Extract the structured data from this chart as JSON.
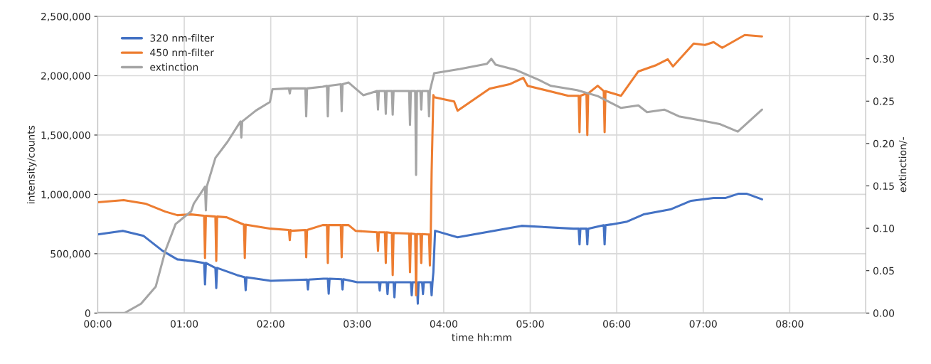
{
  "chart_data": {
    "type": "line",
    "xlabel": "time hh:mm",
    "ylabel": "intensity/counts",
    "y2label": "extinction/-",
    "xlim": [
      0,
      8.88
    ],
    "xticks": [
      {
        "value": 0,
        "label": "00:00"
      },
      {
        "value": 1,
        "label": "01:00"
      },
      {
        "value": 2,
        "label": "02:00"
      },
      {
        "value": 3,
        "label": "03:00"
      },
      {
        "value": 4,
        "label": "04:00"
      },
      {
        "value": 5,
        "label": "05:00"
      },
      {
        "value": 6,
        "label": "06:00"
      },
      {
        "value": 7,
        "label": "07:00"
      },
      {
        "value": 8,
        "label": "08:00"
      }
    ],
    "ylim": [
      0,
      2500000
    ],
    "yticks": [
      {
        "value": 0,
        "label": "0"
      },
      {
        "value": 500000,
        "label": "500,000"
      },
      {
        "value": 1000000,
        "label": "1,000,000"
      },
      {
        "value": 1500000,
        "label": "1,500,000"
      },
      {
        "value": 2000000,
        "label": "2,000,000"
      },
      {
        "value": 2500000,
        "label": "2,500,000"
      }
    ],
    "y2lim": [
      0,
      0.35
    ],
    "y2ticks": [
      {
        "value": 0,
        "label": "0.00"
      },
      {
        "value": 0.05,
        "label": "0.05"
      },
      {
        "value": 0.1,
        "label": "0.10"
      },
      {
        "value": 0.15,
        "label": "0.15"
      },
      {
        "value": 0.2,
        "label": "0.20"
      },
      {
        "value": 0.25,
        "label": "0.25"
      },
      {
        "value": 0.3,
        "label": "0.30"
      },
      {
        "value": 0.35,
        "label": "0.35"
      }
    ],
    "grid": true,
    "legend": "top left",
    "line_style": "solid",
    "marker": "none",
    "series": [
      {
        "name": "320 nm-filter",
        "color": "#4472c4",
        "x": [
          0,
          0.29,
          0.53,
          0.75,
          0.92,
          1.08,
          1.23,
          1.24,
          1.25,
          1.36,
          1.37,
          1.38,
          1.61,
          1.7,
          1.71,
          1.72,
          2.0,
          2.42,
          2.43,
          2.44,
          2.61,
          2.66,
          2.67,
          2.68,
          2.82,
          2.83,
          2.84,
          3.0,
          3.25,
          3.26,
          3.27,
          3.34,
          3.35,
          3.36,
          3.42,
          3.43,
          3.44,
          3.62,
          3.63,
          3.64,
          3.69,
          3.7,
          3.71,
          3.75,
          3.76,
          3.77,
          3.82,
          3.85,
          3.86,
          3.87,
          3.88,
          3.9,
          4.16,
          4.53,
          4.9,
          5.5,
          5.56,
          5.57,
          5.58,
          5.65,
          5.66,
          5.67,
          5.85,
          5.86,
          5.87,
          5.94,
          6.12,
          6.31,
          6.62,
          6.86,
          7.12,
          7.26,
          7.41,
          7.5,
          7.68
        ],
        "values": [
          663000,
          693000,
          650000,
          524000,
          452000,
          440000,
          422000,
          241000,
          422000,
          380000,
          211000,
          380000,
          320000,
          301000,
          193000,
          301000,
          271000,
          282000,
          199000,
          282000,
          289000,
          289000,
          163000,
          289000,
          285000,
          199000,
          285000,
          259000,
          259000,
          190000,
          259000,
          259000,
          160000,
          259000,
          259000,
          133000,
          259000,
          259000,
          150000,
          259000,
          259000,
          78000,
          259000,
          259000,
          160000,
          259000,
          259000,
          259000,
          150000,
          259000,
          343000,
          693000,
          639000,
          687000,
          735000,
          711000,
          711000,
          578000,
          711000,
          711000,
          578000,
          711000,
          740000,
          578000,
          740000,
          747000,
          771000,
          831000,
          873000,
          946000,
          970000,
          970000,
          1006000,
          1006000,
          958000
        ]
      },
      {
        "name": "450 nm-filter",
        "color": "#ed7d31",
        "x": [
          0,
          0.3,
          0.55,
          0.78,
          0.92,
          1.08,
          1.23,
          1.24,
          1.25,
          1.36,
          1.37,
          1.38,
          1.49,
          1.69,
          1.7,
          1.71,
          2.0,
          2.21,
          2.22,
          2.23,
          2.24,
          2.4,
          2.41,
          2.42,
          2.6,
          2.65,
          2.66,
          2.67,
          2.81,
          2.82,
          2.83,
          2.9,
          2.98,
          3.23,
          3.24,
          3.25,
          3.32,
          3.33,
          3.34,
          3.4,
          3.41,
          3.42,
          3.6,
          3.61,
          3.62,
          3.67,
          3.68,
          3.69,
          3.73,
          3.74,
          3.75,
          3.81,
          3.83,
          3.84,
          3.85,
          3.86,
          3.88,
          3.89,
          4.12,
          4.16,
          4.53,
          4.76,
          4.92,
          4.97,
          5.44,
          5.56,
          5.57,
          5.58,
          5.65,
          5.66,
          5.67,
          5.78,
          5.85,
          5.86,
          5.87,
          6.05,
          6.25,
          6.46,
          6.59,
          6.65,
          6.89,
          7.02,
          7.12,
          7.22,
          7.48,
          7.68
        ],
        "values": [
          934000,
          952000,
          922000,
          855000,
          825000,
          831000,
          820000,
          464000,
          820000,
          813000,
          440000,
          813000,
          807000,
          745000,
          464000,
          745000,
          711000,
          700000,
          614000,
          700000,
          693000,
          700000,
          470000,
          700000,
          741000,
          741000,
          422000,
          741000,
          741000,
          470000,
          741000,
          741000,
          693000,
          680000,
          524000,
          680000,
          680000,
          422000,
          680000,
          675000,
          319000,
          675000,
          670000,
          343000,
          670000,
          666000,
          151000,
          666000,
          666000,
          422000,
          666000,
          663000,
          663000,
          400000,
          663000,
          1187000,
          1837000,
          1819000,
          1783000,
          1705000,
          1891000,
          1928000,
          1982000,
          1915000,
          1831000,
          1831000,
          1524000,
          1831000,
          1850000,
          1500000,
          1850000,
          1915000,
          1870000,
          1524000,
          1870000,
          1831000,
          2036000,
          2090000,
          2139000,
          2078000,
          2271000,
          2259000,
          2283000,
          2235000,
          2343000,
          2331000
        ]
      },
      {
        "name": "extinction",
        "color": "#a5a5a5",
        "axis": "y2",
        "x": [
          0,
          0.31,
          0.5,
          0.67,
          0.78,
          0.9,
          1.08,
          1.11,
          1.24,
          1.25,
          1.26,
          1.36,
          1.5,
          1.65,
          1.66,
          1.67,
          1.83,
          1.99,
          2.02,
          2.21,
          2.22,
          2.23,
          2.4,
          2.41,
          2.42,
          2.6,
          2.65,
          2.66,
          2.67,
          2.81,
          2.82,
          2.83,
          2.9,
          3.07,
          3.23,
          3.24,
          3.25,
          3.32,
          3.33,
          3.34,
          3.4,
          3.41,
          3.42,
          3.6,
          3.61,
          3.62,
          3.67,
          3.68,
          3.69,
          3.73,
          3.74,
          3.75,
          3.82,
          3.83,
          3.84,
          3.89,
          4.19,
          4.5,
          4.55,
          4.6,
          4.83,
          5.1,
          5.24,
          5.54,
          5.78,
          6.05,
          6.25,
          6.35,
          6.55,
          6.72,
          6.99,
          7.19,
          7.4,
          7.68
        ],
        "values": [
          0.0,
          0.0,
          0.011,
          0.031,
          0.073,
          0.105,
          0.12,
          0.129,
          0.149,
          0.121,
          0.149,
          0.183,
          0.202,
          0.226,
          0.207,
          0.226,
          0.239,
          0.249,
          0.264,
          0.265,
          0.259,
          0.265,
          0.265,
          0.232,
          0.265,
          0.267,
          0.268,
          0.232,
          0.268,
          0.27,
          0.238,
          0.27,
          0.272,
          0.257,
          0.262,
          0.24,
          0.262,
          0.262,
          0.235,
          0.262,
          0.262,
          0.234,
          0.262,
          0.262,
          0.222,
          0.262,
          0.262,
          0.163,
          0.262,
          0.262,
          0.24,
          0.262,
          0.262,
          0.232,
          0.262,
          0.283,
          0.288,
          0.294,
          0.3,
          0.293,
          0.287,
          0.275,
          0.268,
          0.263,
          0.256,
          0.242,
          0.245,
          0.237,
          0.24,
          0.232,
          0.227,
          0.223,
          0.214,
          0.24
        ]
      }
    ]
  }
}
